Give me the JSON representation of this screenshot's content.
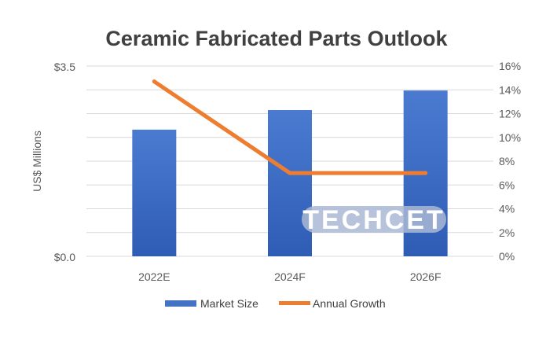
{
  "chart_data": {
    "type": "bar",
    "title": "Ceramic Fabricated Parts Outlook",
    "xlabel": "",
    "ylabel": "US$ Millions",
    "categories": [
      "2022E",
      "2024F",
      "2026F"
    ],
    "ylim": [
      0,
      3.5
    ],
    "y_ticks_labeled": [
      "$0.0",
      "$3.5"
    ],
    "y2lim": [
      0,
      16
    ],
    "y2_ticks": [
      "0%",
      "2%",
      "4%",
      "6%",
      "8%",
      "10%",
      "12%",
      "14%",
      "16%"
    ],
    "grid": true,
    "legend_position": "bottom",
    "series": [
      {
        "name": "Market Size",
        "type": "bar",
        "axis": "left",
        "color": "#4472c4",
        "values": [
          2.33,
          2.69,
          3.05
        ]
      },
      {
        "name": "Annual Growth",
        "type": "line",
        "axis": "right",
        "color": "#ed7d31",
        "values": [
          14.7,
          7.0,
          7.0
        ]
      }
    ],
    "watermark": "TECHCET"
  }
}
